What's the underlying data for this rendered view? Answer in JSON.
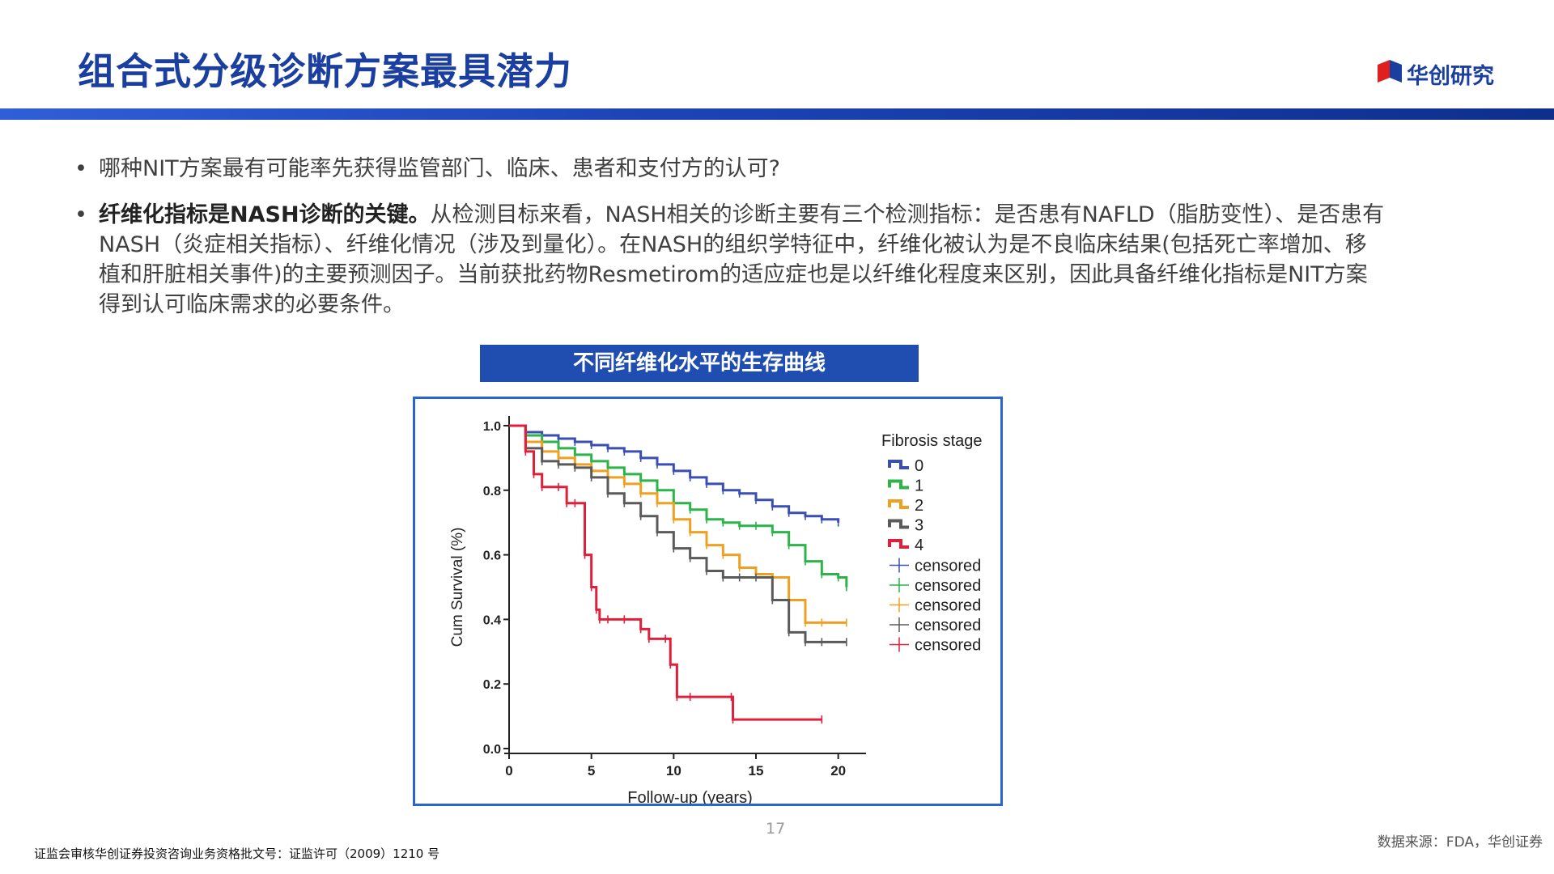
{
  "header": {
    "title": "组合式分级诊断方案最具潜力",
    "logo_text": "华创研究",
    "accent_color": "#1a3fa0"
  },
  "bullets": [
    {
      "text": "哪种NIT方案最有可能率先获得监管部门、临床、患者和支付方的认可?"
    },
    {
      "lead": "纤维化指标是NASH诊断的关键。",
      "text": "从检测目标来看，NASH相关的诊断主要有三个检测指标：是否患有NAFLD（脂肪变性）、是否患有NASH（炎症相关指标）、纤维化情况（涉及到量化）。在NASH的组织学特征中，纤维化被认为是不良临床结果(包括死亡率增加、移植和肝脏相关事件)的主要预测因子。当前获批药物Resmetirom的适应症也是以纤维化程度来区别，因此具备纤维化指标是NIT方案得到认可临床需求的必要条件。"
    }
  ],
  "figure": {
    "caption": "不同纤维化水平的生存曲线"
  },
  "chart_data": {
    "type": "line",
    "title": "",
    "xlabel": "Follow-up (years)",
    "ylabel": "Cum Survival (%)",
    "xlim": [
      0,
      21
    ],
    "ylim": [
      0,
      1.0
    ],
    "xticks": [
      "0",
      "5",
      "10",
      "15",
      "20"
    ],
    "yticks": [
      "0.0",
      "0.2",
      "0.4",
      "0.6",
      "0.8",
      "1.0"
    ],
    "legend_title": "Fibrosis stage",
    "legend_position": "right",
    "censored_label": "censored",
    "series": [
      {
        "name": "0",
        "color": "#3a4fb0",
        "points": [
          [
            0,
            1.0
          ],
          [
            1,
            0.98
          ],
          [
            2,
            0.97
          ],
          [
            3,
            0.96
          ],
          [
            4,
            0.95
          ],
          [
            5,
            0.94
          ],
          [
            6,
            0.93
          ],
          [
            7,
            0.92
          ],
          [
            8,
            0.9
          ],
          [
            9,
            0.88
          ],
          [
            10,
            0.86
          ],
          [
            11,
            0.84
          ],
          [
            12,
            0.82
          ],
          [
            13,
            0.8
          ],
          [
            14,
            0.79
          ],
          [
            15,
            0.77
          ],
          [
            16,
            0.75
          ],
          [
            17,
            0.73
          ],
          [
            18,
            0.72
          ],
          [
            19,
            0.71
          ],
          [
            20,
            0.7
          ]
        ]
      },
      {
        "name": "1",
        "color": "#2db34a",
        "points": [
          [
            0,
            1.0
          ],
          [
            1,
            0.97
          ],
          [
            2,
            0.95
          ],
          [
            3,
            0.93
          ],
          [
            4,
            0.91
          ],
          [
            5,
            0.89
          ],
          [
            6,
            0.87
          ],
          [
            7,
            0.85
          ],
          [
            8,
            0.83
          ],
          [
            9,
            0.8
          ],
          [
            10,
            0.76
          ],
          [
            11,
            0.74
          ],
          [
            12,
            0.71
          ],
          [
            13,
            0.7
          ],
          [
            14,
            0.69
          ],
          [
            15,
            0.69
          ],
          [
            16,
            0.67
          ],
          [
            17,
            0.63
          ],
          [
            18,
            0.58
          ],
          [
            19,
            0.54
          ],
          [
            20,
            0.53
          ],
          [
            20.5,
            0.5
          ]
        ]
      },
      {
        "name": "2",
        "color": "#f0a020",
        "points": [
          [
            0,
            1.0
          ],
          [
            1,
            0.95
          ],
          [
            2,
            0.92
          ],
          [
            3,
            0.9
          ],
          [
            4,
            0.88
          ],
          [
            5,
            0.86
          ],
          [
            6,
            0.84
          ],
          [
            7,
            0.82
          ],
          [
            8,
            0.79
          ],
          [
            9,
            0.76
          ],
          [
            10,
            0.71
          ],
          [
            11,
            0.67
          ],
          [
            12,
            0.63
          ],
          [
            13,
            0.6
          ],
          [
            14,
            0.56
          ],
          [
            15,
            0.54
          ],
          [
            16,
            0.53
          ],
          [
            17,
            0.46
          ],
          [
            18,
            0.39
          ],
          [
            19,
            0.39
          ],
          [
            20.5,
            0.39
          ]
        ]
      },
      {
        "name": "3",
        "color": "#5a5a5a",
        "points": [
          [
            0,
            1.0
          ],
          [
            1,
            0.93
          ],
          [
            2,
            0.89
          ],
          [
            3,
            0.88
          ],
          [
            4,
            0.87
          ],
          [
            5,
            0.84
          ],
          [
            6,
            0.79
          ],
          [
            7,
            0.76
          ],
          [
            8,
            0.72
          ],
          [
            9,
            0.67
          ],
          [
            10,
            0.62
          ],
          [
            11,
            0.59
          ],
          [
            12,
            0.55
          ],
          [
            13,
            0.53
          ],
          [
            14,
            0.53
          ],
          [
            15,
            0.53
          ],
          [
            16,
            0.46
          ],
          [
            17,
            0.36
          ],
          [
            18,
            0.33
          ],
          [
            19,
            0.33
          ],
          [
            20.5,
            0.33
          ]
        ]
      },
      {
        "name": "4",
        "color": "#e0203a",
        "points": [
          [
            0,
            1.0
          ],
          [
            1,
            0.92
          ],
          [
            1.5,
            0.85
          ],
          [
            2,
            0.81
          ],
          [
            3,
            0.81
          ],
          [
            3.5,
            0.76
          ],
          [
            4,
            0.76
          ],
          [
            4.6,
            0.6
          ],
          [
            5,
            0.5
          ],
          [
            5.3,
            0.43
          ],
          [
            5.5,
            0.4
          ],
          [
            6,
            0.4
          ],
          [
            7,
            0.4
          ],
          [
            8,
            0.37
          ],
          [
            8.5,
            0.34
          ],
          [
            9.5,
            0.34
          ],
          [
            9.8,
            0.26
          ],
          [
            10.2,
            0.16
          ],
          [
            11,
            0.16
          ],
          [
            13.5,
            0.16
          ],
          [
            13.6,
            0.09
          ],
          [
            19,
            0.09
          ]
        ]
      }
    ]
  },
  "page": {
    "number": "17"
  },
  "footer": {
    "license": "证监会审核华创证券投资咨询业务资格批文号：证监许可（2009）1210 号",
    "source": "数据来源：FDA，华创证券"
  }
}
